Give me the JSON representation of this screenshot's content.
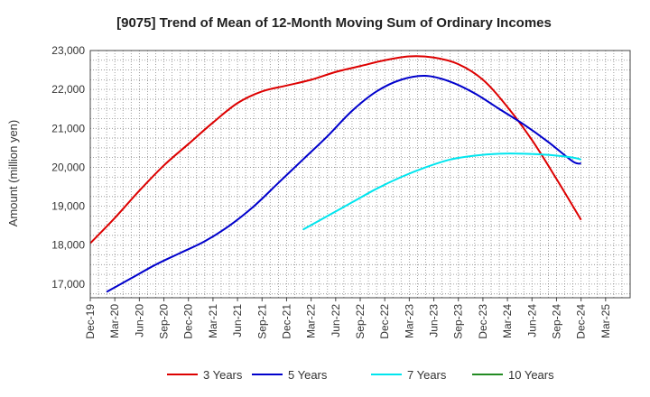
{
  "chart_data": {
    "type": "line",
    "title": "[9075]  Trend of Mean of 12-Month Moving Sum of Ordinary Incomes",
    "xlabel": "",
    "ylabel": "Amount (million yen)",
    "ylim": [
      16650,
      23000
    ],
    "yticks": [
      17000,
      18000,
      19000,
      20000,
      21000,
      22000,
      23000
    ],
    "ytick_labels": [
      "17,000",
      "18,000",
      "19,000",
      "20,000",
      "21,000",
      "22,000",
      "23,000"
    ],
    "xlim": [
      0,
      66
    ],
    "xticks": [
      "Dec-19",
      "Mar-20",
      "Jun-20",
      "Sep-20",
      "Dec-20",
      "Mar-21",
      "Jun-21",
      "Sep-21",
      "Dec-21",
      "Mar-22",
      "Jun-22",
      "Sep-22",
      "Dec-22",
      "Mar-23",
      "Jun-23",
      "Sep-23",
      "Dec-23",
      "Mar-24",
      "Jun-24",
      "Sep-24",
      "Dec-24",
      "Mar-25"
    ],
    "grid": true,
    "legend_position": "bottom",
    "series": [
      {
        "name": "3 Years",
        "color": "#dd0000",
        "points": [
          [
            0,
            18050
          ],
          [
            3,
            18700
          ],
          [
            6,
            19400
          ],
          [
            9,
            20050
          ],
          [
            12,
            20600
          ],
          [
            15,
            21150
          ],
          [
            18,
            21650
          ],
          [
            21,
            21950
          ],
          [
            24,
            22100
          ],
          [
            27,
            22250
          ],
          [
            30,
            22450
          ],
          [
            33,
            22600
          ],
          [
            36,
            22750
          ],
          [
            39,
            22850
          ],
          [
            42,
            22820
          ],
          [
            45,
            22650
          ],
          [
            48,
            22250
          ],
          [
            51,
            21550
          ],
          [
            54,
            20700
          ],
          [
            57,
            19700
          ],
          [
            60,
            18650
          ]
        ]
      },
      {
        "name": "5 Years",
        "color": "#0000cc",
        "points": [
          [
            2,
            16800
          ],
          [
            5,
            17150
          ],
          [
            8,
            17500
          ],
          [
            11,
            17800
          ],
          [
            14,
            18100
          ],
          [
            17,
            18500
          ],
          [
            20,
            19000
          ],
          [
            23,
            19600
          ],
          [
            26,
            20200
          ],
          [
            29,
            20800
          ],
          [
            32,
            21450
          ],
          [
            35,
            21950
          ],
          [
            38,
            22250
          ],
          [
            41,
            22350
          ],
          [
            44,
            22200
          ],
          [
            47,
            21900
          ],
          [
            50,
            21500
          ],
          [
            53,
            21100
          ],
          [
            56,
            20650
          ],
          [
            59,
            20150
          ],
          [
            60,
            20100
          ]
        ]
      },
      {
        "name": "7 Years",
        "color": "#00e5ee",
        "points": [
          [
            26,
            18400
          ],
          [
            29,
            18750
          ],
          [
            32,
            19100
          ],
          [
            35,
            19450
          ],
          [
            38,
            19750
          ],
          [
            41,
            20000
          ],
          [
            44,
            20200
          ],
          [
            47,
            20300
          ],
          [
            50,
            20350
          ],
          [
            53,
            20350
          ],
          [
            56,
            20320
          ],
          [
            59,
            20250
          ],
          [
            60,
            20200
          ]
        ]
      },
      {
        "name": "10 Years",
        "color": "#228b22",
        "points": []
      }
    ]
  }
}
